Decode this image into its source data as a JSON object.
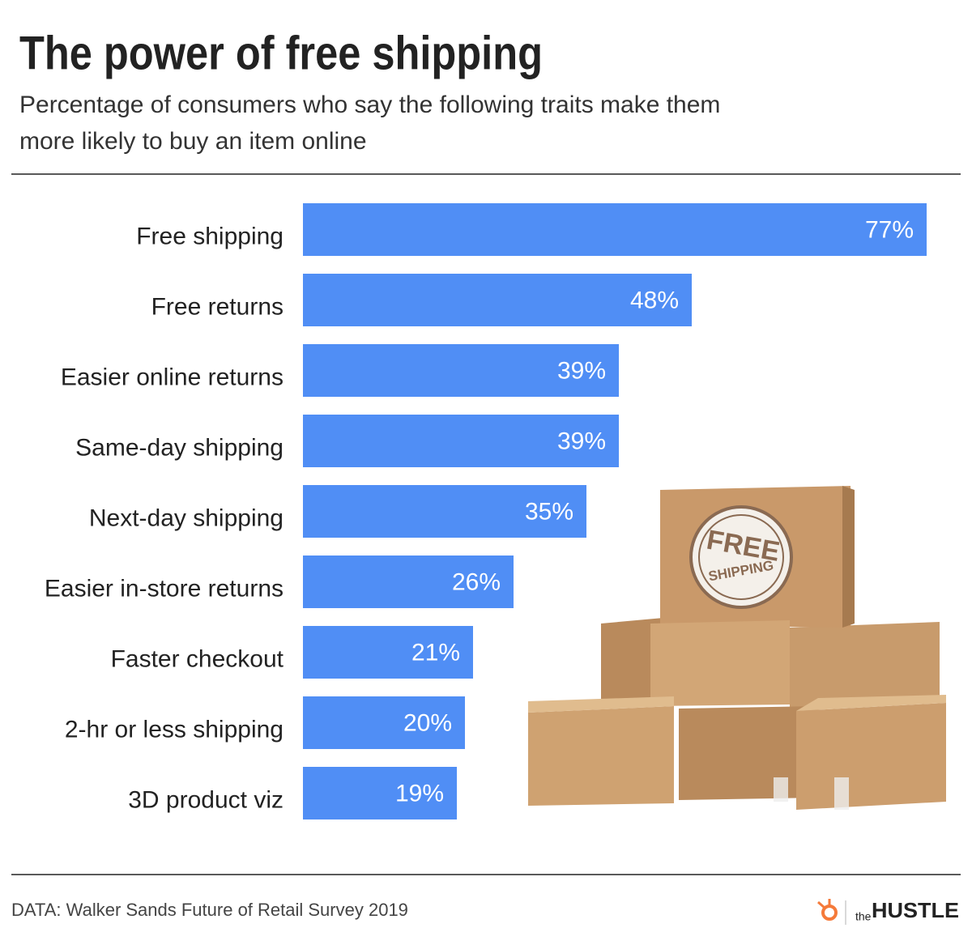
{
  "chart_data": {
    "type": "bar",
    "orientation": "horizontal",
    "title": "The power of free shipping",
    "subtitle": [
      "Percentage of consumers who say the following traits make them",
      "more likely to buy an item online"
    ],
    "categories": [
      "Free shipping",
      "Free returns",
      "Easier online returns",
      "Same-day shipping",
      "Next-day shipping",
      "Easier in-store returns",
      "Faster checkout",
      "2-hr or less shipping",
      "3D product viz"
    ],
    "values": [
      77,
      48,
      39,
      39,
      35,
      26,
      21,
      20,
      19
    ],
    "value_labels": [
      "77%",
      "48%",
      "39%",
      "39%",
      "35%",
      "26%",
      "21%",
      "20%",
      "19%"
    ],
    "color": "#508ef5",
    "stamp": [
      "FREE",
      "SHIPPING"
    ],
    "source": "DATA: Walker Sands Future of Retail Survey 2019",
    "brand": [
      "the",
      "HUSTLE"
    ]
  }
}
